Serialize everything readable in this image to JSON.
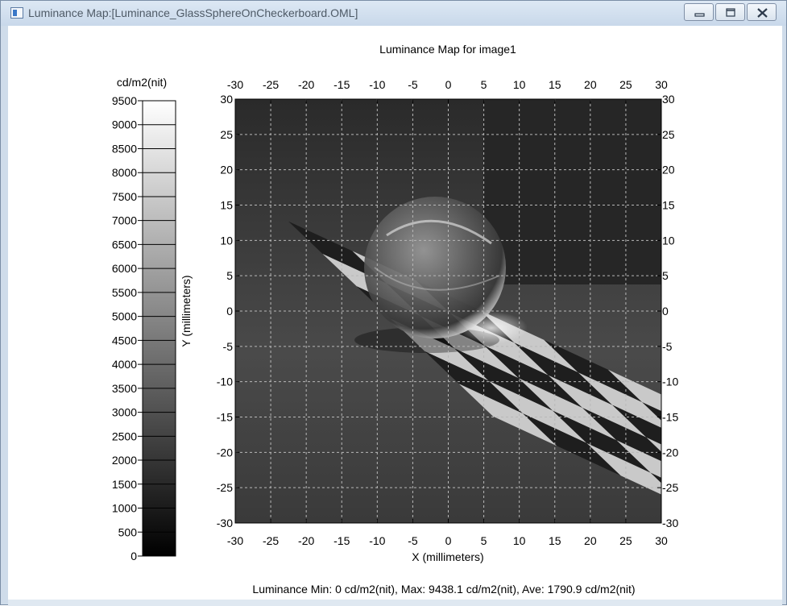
{
  "window": {
    "title": "Luminance Map:[Luminance_GlassSphereOnCheckerboard.OML]",
    "buttons": [
      "minimize",
      "maximize",
      "close"
    ]
  },
  "chart_data": {
    "type": "heatmap",
    "title": "Luminance Map for image1",
    "xlabel": "X (millimeters)",
    "ylabel": "Y (millimeters)",
    "xlim": [
      -30,
      30
    ],
    "ylim": [
      -30,
      30
    ],
    "x_ticks": [
      -30,
      -25,
      -20,
      -15,
      -10,
      -5,
      0,
      5,
      10,
      15,
      20,
      25,
      30
    ],
    "y_ticks": [
      30,
      25,
      20,
      15,
      10,
      5,
      0,
      -5,
      -10,
      -15,
      -20,
      -25,
      -30
    ],
    "grid": true,
    "colormap": "grayscale",
    "colorbar": {
      "unit_label": "cd/m2(nit)",
      "ticks": [
        9500,
        9000,
        8500,
        8000,
        7500,
        7000,
        6500,
        6000,
        5500,
        5000,
        4500,
        4000,
        3500,
        3000,
        2500,
        2000,
        1500,
        1000,
        500,
        0
      ],
      "range": [
        0,
        9500
      ]
    },
    "stats": "Luminance Min: 0 cd/m2(nit), Max: 9438.1 cd/m2(nit), Ave: 1790.9 cd/m2(nit)",
    "min": 0,
    "max": 9438.1,
    "average": 1790.9
  }
}
